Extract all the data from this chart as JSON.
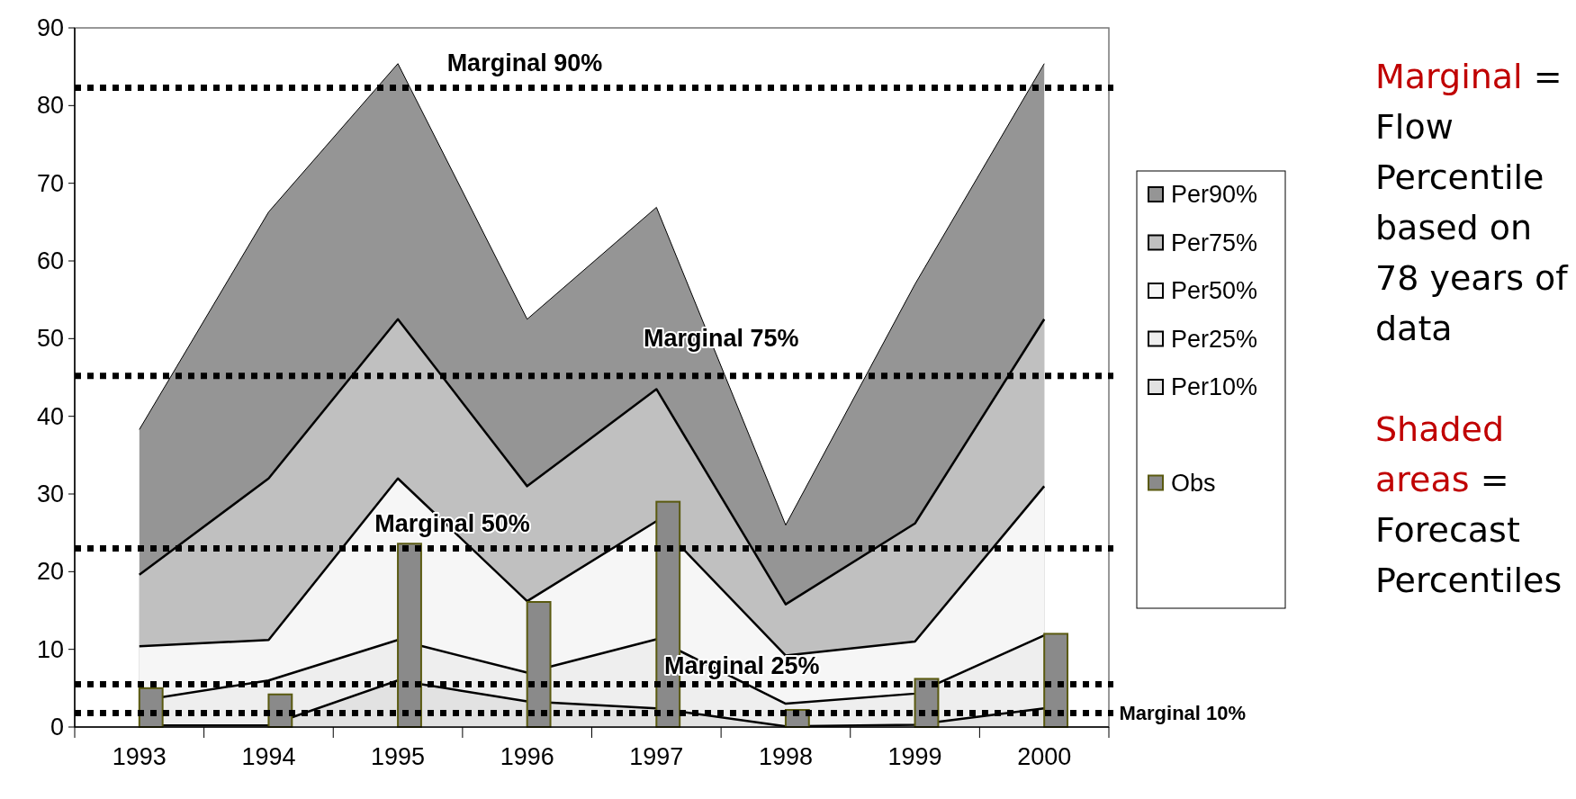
{
  "chart_data": {
    "type": "area",
    "categories": [
      "1993",
      "1994",
      "1995",
      "1996",
      "1997",
      "1998",
      "1999",
      "2000"
    ],
    "series": [
      {
        "name": "Per90%",
        "color": "#959595",
        "values": [
          38.3,
          66.3,
          85.4,
          52.5,
          66.9,
          26,
          57,
          85.4
        ]
      },
      {
        "name": "Per75%",
        "color": "#c0c0c0",
        "values": [
          19.6,
          32,
          52.5,
          31,
          43.5,
          15.8,
          26.2,
          52.5
        ]
      },
      {
        "name": "Per50%",
        "color": "#f6f6f6",
        "values": [
          10.4,
          11.2,
          32,
          16.2,
          26.5,
          9.2,
          11,
          31
        ]
      },
      {
        "name": "Per25%",
        "color": "#eeeeee",
        "values": [
          3.4,
          6,
          11.2,
          7,
          11.3,
          3,
          4.3,
          11.8
        ]
      },
      {
        "name": "Per10%",
        "color": "#e2e2e2",
        "values": [
          0.2,
          0.2,
          6,
          3.3,
          2.4,
          0.1,
          0.3,
          2.4
        ]
      },
      {
        "name": "Obs",
        "type": "bar",
        "color": "#8a8a8a",
        "values": [
          5,
          4.2,
          23.6,
          16.1,
          29,
          2.2,
          6.2,
          12
        ]
      }
    ],
    "ylim": [
      0,
      90
    ],
    "yticks": [
      0,
      10,
      20,
      30,
      40,
      50,
      60,
      70,
      80,
      90
    ],
    "ref_lines": [
      {
        "axis": "y",
        "value": 82.3,
        "label": "Marginal 90%",
        "line_style": "dotted",
        "color": "#000000"
      },
      {
        "axis": "y",
        "value": 45.2,
        "label": "Marginal 75%",
        "line_style": "dotted",
        "color": "#000000"
      },
      {
        "axis": "y",
        "value": 23,
        "label": "Marginal 50%",
        "line_style": "dotted",
        "color": "#000000"
      },
      {
        "axis": "y",
        "value": 5.5,
        "label": "Marginal 25%",
        "line_style": "dotted",
        "color": "#000000"
      },
      {
        "axis": "y",
        "value": 1.8,
        "label": "Marginal 10%",
        "line_style": "dotted",
        "color": "#000000"
      }
    ],
    "legend": "right",
    "annotations": [
      "Marginal",
      "= Flow Percentile based on 78 years of data",
      "Shaded areas",
      "= Forecast Percentiles"
    ]
  }
}
